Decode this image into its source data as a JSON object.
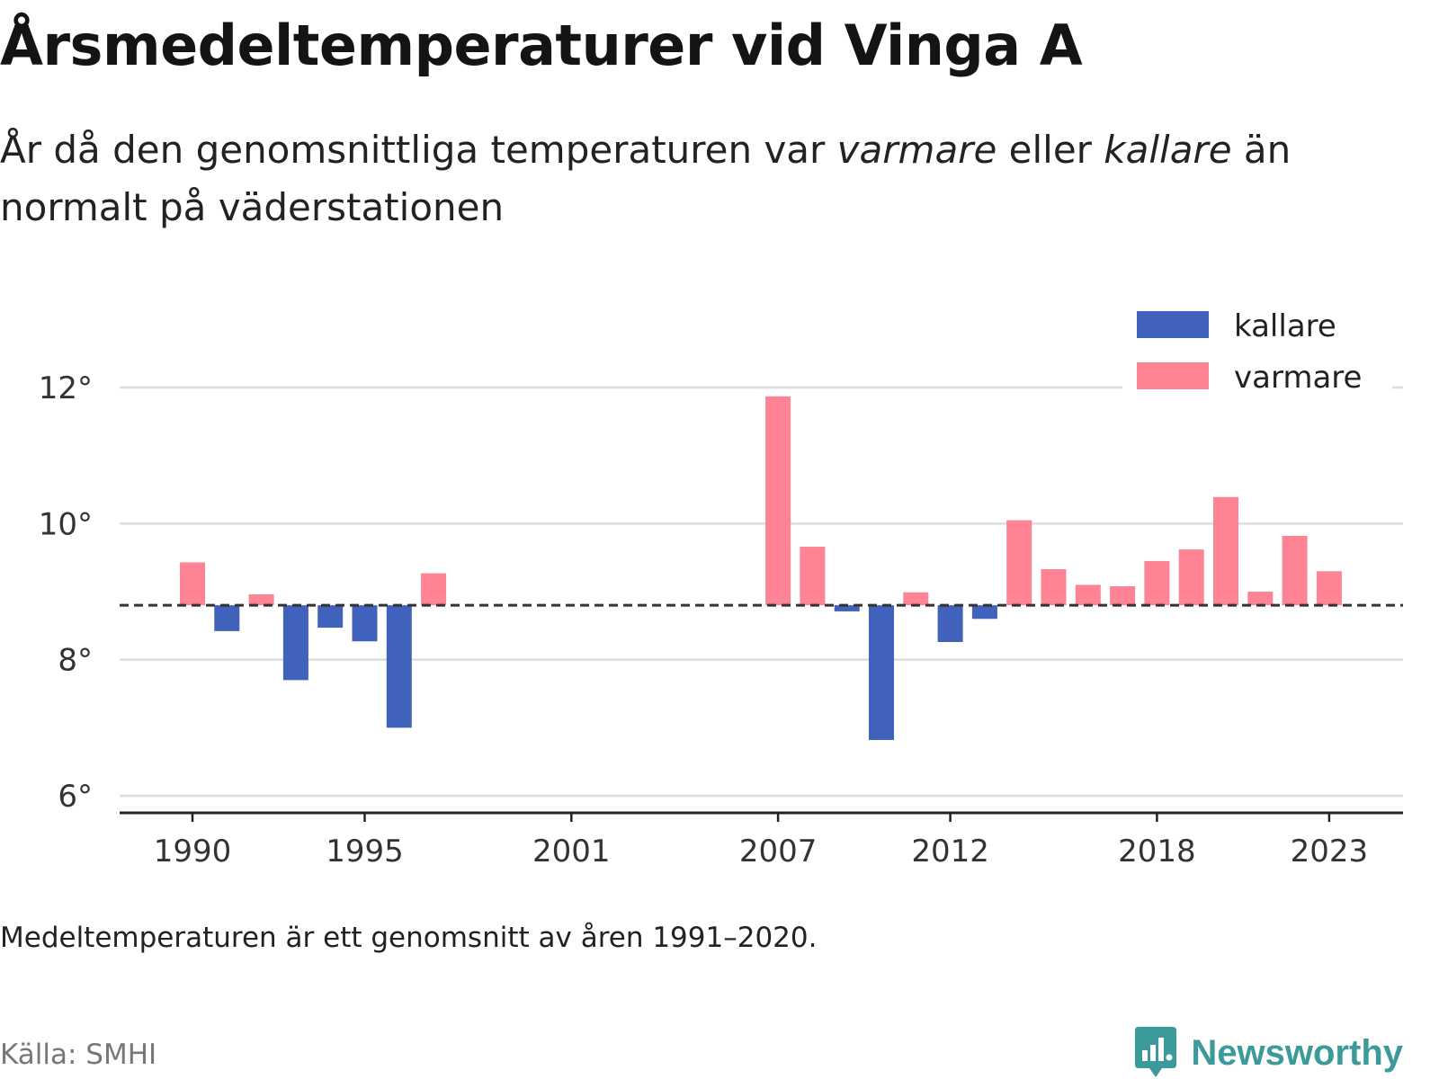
{
  "title": "Årsmedeltemperaturer vid Vinga A",
  "subtitle": {
    "part1": "År då den genomsnittliga temperaturen var ",
    "warmer": "varmare",
    "part2": " eller ",
    "colder": "kallare",
    "part3": " än normalt på väderstationen"
  },
  "note": "Medeltemperaturen är ett genomsnitt av åren 1991–2020.",
  "source": "Källa: SMHI",
  "logo_text": "Newsworthy",
  "colors": {
    "warmer": "#fe8394",
    "colder": "#4062bb",
    "reference": "#333333",
    "grid": "#dddddd",
    "brand": "#3d9a9b"
  },
  "chart_data": {
    "type": "bar",
    "baseline": 8.8,
    "ylim": [
      5.8,
      12.6
    ],
    "yticks": [
      6,
      8,
      10,
      12
    ],
    "ytick_labels": [
      "6°",
      "8°",
      "10°",
      "12°"
    ],
    "xtick_labels": [
      "1990",
      "1995",
      "2001",
      "2007",
      "2012",
      "2018",
      "2023"
    ],
    "grid": true,
    "legend_position": "top-right",
    "legend": [
      {
        "key": "colder",
        "label": "kallare"
      },
      {
        "key": "warmer",
        "label": "varmare"
      }
    ],
    "years": [
      1990,
      1991,
      1992,
      1993,
      1994,
      1995,
      1996,
      1997,
      2007,
      2008,
      2009,
      2010,
      2011,
      2012,
      2013,
      2014,
      2015,
      2016,
      2017,
      2018,
      2019,
      2020,
      2021,
      2022,
      2023
    ],
    "values": [
      9.43,
      8.42,
      8.96,
      7.7,
      8.47,
      8.27,
      7.0,
      9.27,
      11.87,
      9.66,
      8.71,
      6.82,
      8.99,
      8.26,
      8.6,
      10.05,
      9.33,
      9.1,
      9.08,
      9.45,
      9.62,
      10.39,
      9.0,
      9.82,
      9.3
    ]
  }
}
